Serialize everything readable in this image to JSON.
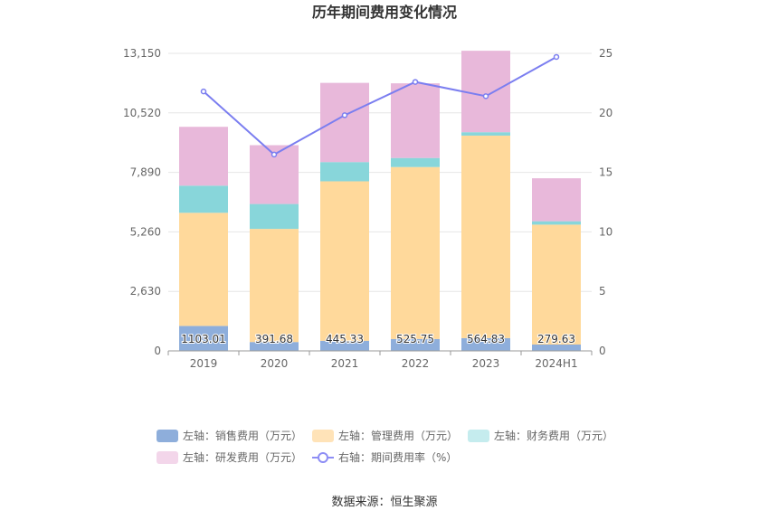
{
  "chart_data": {
    "type": "bar",
    "stacked": true,
    "title": "历年期间费用变化情况",
    "categories": [
      "2019",
      "2020",
      "2021",
      "2022",
      "2023",
      "2024H1"
    ],
    "y_left": {
      "ticks": [
        "0",
        "2,630",
        "5,260",
        "7,890",
        "10,520",
        "13,150"
      ],
      "min": 0,
      "max": 13150
    },
    "y_right": {
      "ticks": [
        "0",
        "5",
        "10",
        "15",
        "20",
        "25"
      ],
      "min": 0,
      "max": 25
    },
    "series": [
      {
        "name": "左轴：销售费用（万元）",
        "type": "bar",
        "axis": "left",
        "color": "#8eaedb",
        "values": [
          1103.01,
          391.68,
          445.33,
          525.75,
          564.83,
          279.63
        ],
        "labels": [
          "1103.01",
          "391.68",
          "445.33",
          "525.75",
          "564.83",
          "279.63"
        ]
      },
      {
        "name": "左轴：管理费用（万元）",
        "type": "bar",
        "axis": "left",
        "color": "#ffd99b",
        "values": [
          5000,
          5000,
          7050,
          7600,
          8950,
          5300
        ]
      },
      {
        "name": "左轴：财务费用（万元）",
        "type": "bar",
        "axis": "left",
        "color": "#88d6da",
        "values": [
          1200,
          1100,
          850,
          400,
          150,
          150
        ]
      },
      {
        "name": "左轴：研发费用（万元）",
        "type": "bar",
        "axis": "left",
        "color": "#e8b8da",
        "values": [
          2600,
          2600,
          3500,
          3300,
          3600,
          1900
        ]
      },
      {
        "name": "右轴：期间费用率（%）",
        "type": "line",
        "axis": "right",
        "color": "#7b7ef0",
        "values": [
          21.8,
          16.5,
          19.8,
          22.6,
          21.4,
          24.7
        ]
      }
    ],
    "legend_colors": [
      "#8eaedb",
      "#ffe3b8",
      "#c5ecee",
      "#f3d6ea",
      "#8d8df5"
    ]
  },
  "source": "数据来源：恒生聚源"
}
